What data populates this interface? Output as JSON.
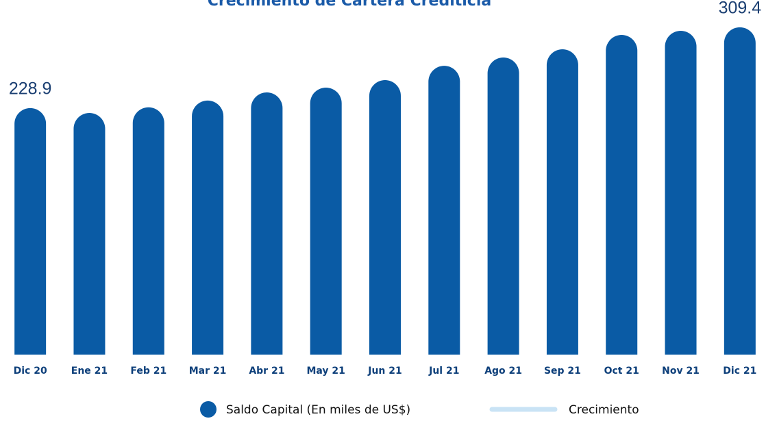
{
  "chart_data": {
    "type": "bar",
    "title": "Crecimiento de Cartera Crediticia",
    "categories": [
      "Dic 20",
      "Ene 21",
      "Feb 21",
      "Mar 21",
      "Abr 21",
      "May 21",
      "Jun 21",
      "Jul 21",
      "Ago 21",
      "Sep 21",
      "Oct 21",
      "Nov 21",
      "Dic 21"
    ],
    "series": [
      {
        "name": "Saldo Capital (En miles de US$)",
        "color": "#0a5ba5",
        "values": [
          228.9,
          224,
          229.6,
          236.4,
          244.5,
          249.3,
          256.8,
          271,
          279.3,
          287.5,
          301.8,
          305.9,
          309.4
        ],
        "value_labels": [
          "228.9",
          null,
          null,
          null,
          null,
          null,
          null,
          null,
          null,
          null,
          null,
          null,
          "309.4"
        ]
      },
      {
        "name": "Crecimiento",
        "color": "#c9e3f5",
        "values": [
          null,
          null,
          null,
          null,
          null,
          null,
          null,
          null,
          null,
          null,
          null,
          null,
          null
        ]
      }
    ],
    "ylim": [
      -17,
      323
    ]
  }
}
